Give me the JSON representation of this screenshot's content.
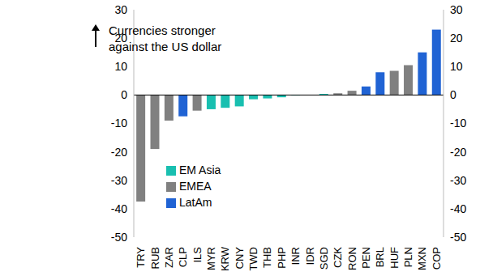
{
  "chart_data": {
    "type": "bar",
    "annotation": [
      "Currencies stronger",
      "against the US dollar"
    ],
    "categories": [
      "TRY",
      "RUB",
      "ZAR",
      "CLP",
      "ILS",
      "MYR",
      "KRW",
      "CNY",
      "TWD",
      "THB",
      "PHP",
      "INR",
      "IDR",
      "SGD",
      "CZK",
      "RON",
      "PEN",
      "BRL",
      "HUF",
      "PLN",
      "MXN",
      "COP"
    ],
    "series": [
      {
        "name": "LatAm",
        "color": "#2063d4",
        "values": [
          null,
          null,
          null,
          -7.5,
          null,
          null,
          null,
          null,
          null,
          null,
          null,
          null,
          null,
          null,
          null,
          null,
          3,
          8,
          null,
          null,
          15,
          23
        ]
      },
      {
        "name": "EM Asia",
        "color": "#19bfb0",
        "values": [
          null,
          null,
          null,
          null,
          null,
          -5,
          -4.5,
          -4,
          -1.5,
          -1.2,
          -0.8,
          -0.2,
          0,
          0.4,
          null,
          null,
          null,
          null,
          null,
          null,
          null,
          null
        ]
      },
      {
        "name": "EMEA",
        "color": "#808080",
        "values": [
          -37.5,
          -19,
          -9,
          null,
          -5.5,
          null,
          null,
          null,
          null,
          null,
          null,
          null,
          null,
          null,
          0.6,
          1.5,
          null,
          null,
          8.5,
          10.5,
          null,
          null
        ]
      }
    ],
    "stacked": true,
    "legend": "left",
    "ylim": [
      -50,
      30
    ],
    "yticks": [
      -50,
      -40,
      -30,
      -20,
      -10,
      0,
      10,
      20,
      30
    ]
  }
}
